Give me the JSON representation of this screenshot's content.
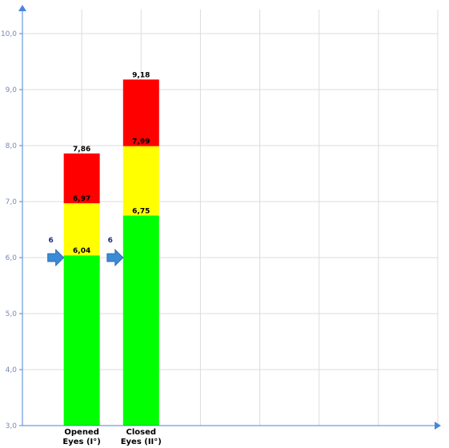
{
  "chart_data": {
    "type": "bar",
    "stacked": true,
    "categories": [
      "Opened Eyes (I°)",
      "Closed Eyes (II°)"
    ],
    "category_lines": [
      [
        "Opened",
        "Eyes (I°)"
      ],
      [
        "Closed",
        "Eyes (II°)"
      ]
    ],
    "segments": [
      {
        "color": "#00ff00",
        "tops": [
          6.04,
          6.75
        ],
        "labels": [
          "6,04",
          "6,75"
        ]
      },
      {
        "color": "#ffff00",
        "tops": [
          6.97,
          7.99
        ],
        "labels": [
          "6,97",
          "7,99"
        ]
      },
      {
        "color": "#ff0000",
        "tops": [
          7.86,
          9.18
        ],
        "labels": [
          "7,86",
          "9,18"
        ]
      }
    ],
    "markers": {
      "values": [
        6,
        6
      ],
      "labels": [
        "6",
        "6"
      ]
    },
    "ylim": [
      3.0,
      10.0
    ],
    "yticks": [
      3.0,
      4.0,
      5.0,
      6.0,
      7.0,
      8.0,
      9.0,
      10.0
    ],
    "ytick_labels": [
      "3,0",
      "4,0",
      "5,0",
      "6,0",
      "7,0",
      "8,0",
      "9,0",
      "10,0"
    ],
    "x_slots": 7,
    "grid": true,
    "title": "",
    "xlabel": "",
    "ylabel": ""
  },
  "colors": {
    "axis": "#4a86d8",
    "grid": "#dcdcdc",
    "marker": "#3a8ad6"
  }
}
